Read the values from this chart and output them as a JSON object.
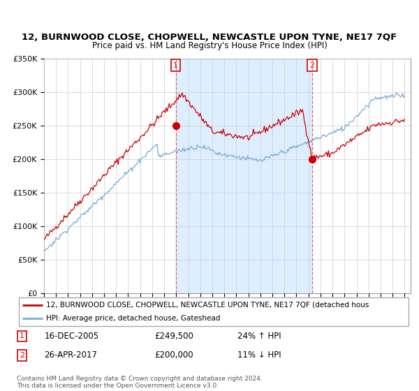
{
  "title": "12, BURNWOOD CLOSE, CHOPWELL, NEWCASTLE UPON TYNE, NE17 7QF",
  "subtitle": "Price paid vs. HM Land Registry's House Price Index (HPI)",
  "legend_line1": "12, BURNWOOD CLOSE, CHOPWELL, NEWCASTLE UPON TYNE, NE17 7QF (detached hous",
  "legend_line2": "HPI: Average price, detached house, Gateshead",
  "transaction1_date": "16-DEC-2005",
  "transaction1_price": "£249,500",
  "transaction1_hpi": "24% ↑ HPI",
  "transaction2_date": "26-APR-2017",
  "transaction2_price": "£200,000",
  "transaction2_hpi": "11% ↓ HPI",
  "footer": "Contains HM Land Registry data © Crown copyright and database right 2024.\nThis data is licensed under the Open Government Licence v3.0.",
  "red_color": "#cc0000",
  "blue_color": "#7aabdb",
  "shade_color": "#ddeeff",
  "vline_color": "#dd6666",
  "background_color": "#ffffff",
  "ylim": [
    0,
    350000
  ],
  "yticks": [
    0,
    50000,
    100000,
    150000,
    200000,
    250000,
    300000,
    350000
  ]
}
